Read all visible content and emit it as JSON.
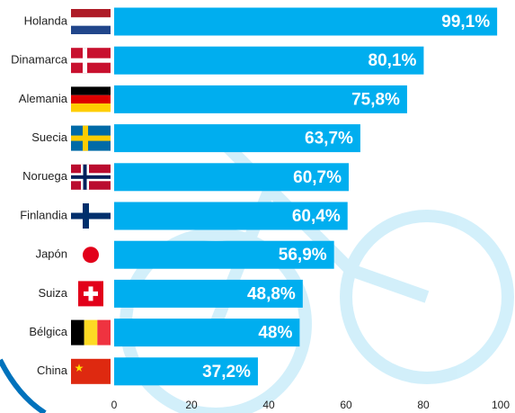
{
  "chart_data": {
    "type": "bar",
    "orientation": "horizontal",
    "categories": [
      "Holanda",
      "Dinamarca",
      "Alemania",
      "Suecia",
      "Noruega",
      "Finlandia",
      "Japón",
      "Suiza",
      "Bélgica",
      "China"
    ],
    "values": [
      99.1,
      80.1,
      75.8,
      63.7,
      60.7,
      60.4,
      56.9,
      48.8,
      48,
      37.2
    ],
    "value_labels": [
      "99,1%",
      "80,1%",
      "75,8%",
      "63,7%",
      "60,7%",
      "60,4%",
      "56,9%",
      "48,8%",
      "48%",
      "37,2%"
    ],
    "color": "#00aeef",
    "xlim": [
      0,
      100
    ],
    "xticks": [
      0,
      20,
      40,
      60,
      80,
      100
    ],
    "grid": false
  }
}
